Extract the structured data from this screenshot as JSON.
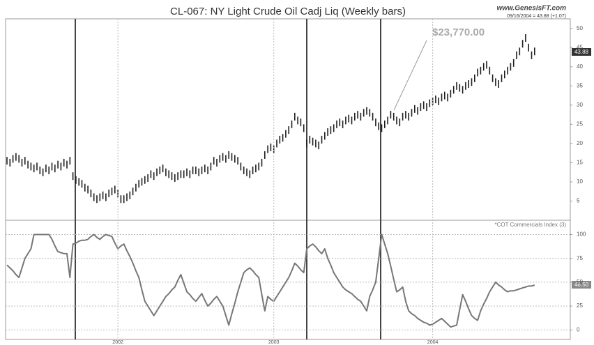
{
  "chart_data": [
    {
      "type": "ohlc",
      "title": "CL-067:  NY Light Crude Oil Cadj Liq  (Weekly bars)",
      "source": "www.GenesisFT.com",
      "subtitle": "09/16/2004 = 43.88 (+1.07)",
      "annotation": "$23,770.00",
      "last_label": "43.88",
      "color": "#1e1e1e",
      "ylim": [
        0,
        52.5
      ],
      "yticks": [
        5,
        10,
        15,
        20,
        25,
        30,
        35,
        40,
        45,
        50
      ],
      "grid": false,
      "high": [
        16.5,
        16,
        17,
        17.5,
        17,
        16,
        16.5,
        15.5,
        15,
        14.5,
        15,
        14,
        13.5,
        14.5,
        14,
        15,
        14.5,
        15.5,
        15,
        16,
        15.5,
        16.5,
        12.5,
        11.5,
        11,
        10.5,
        9.5,
        9,
        8,
        7,
        6.5,
        7,
        7.5,
        7,
        8,
        8.5,
        9,
        8,
        6.5,
        6.5,
        7,
        7.5,
        8.5,
        9.5,
        10.5,
        11,
        11.5,
        12,
        13,
        12.5,
        13.5,
        14,
        14.5,
        13.5,
        13,
        12.5,
        12,
        12.5,
        13,
        13,
        13.5,
        13,
        14,
        14,
        13.5,
        14,
        14.5,
        14,
        15,
        16.5,
        16,
        17,
        17.5,
        17,
        18,
        17.5,
        17,
        16.5,
        15,
        14,
        13.5,
        13,
        14,
        14.5,
        15,
        16,
        18,
        19.5,
        20,
        19.5,
        21,
        22,
        22.5,
        23.5,
        24.5,
        26,
        28,
        27,
        26.5,
        25,
        21,
        22,
        21.5,
        21,
        20.5,
        22,
        23,
        24,
        24.5,
        25,
        26,
        26.5,
        26,
        27,
        27.5,
        27,
        28,
        28.5,
        28,
        29,
        29.5,
        29,
        28,
        26.5,
        25.5,
        25,
        26,
        27,
        28.5,
        28,
        27,
        26.5,
        28,
        28.5,
        28,
        29,
        30,
        29.5,
        30.5,
        31,
        30.5,
        31.5,
        32,
        32.5,
        32,
        33,
        33.5,
        33,
        34,
        35,
        36,
        35.5,
        35,
        36,
        36.5,
        37,
        38,
        39.5,
        40,
        41,
        41.5,
        40,
        38,
        37,
        36.5,
        38,
        39,
        40,
        41,
        42,
        44,
        45,
        47,
        48.5,
        46,
        44,
        45
      ],
      "low": [
        14.5,
        14,
        15,
        15.5,
        15,
        14,
        14.5,
        13.5,
        13,
        12.5,
        13,
        12,
        11.5,
        12.5,
        12,
        13,
        12.5,
        13.5,
        13,
        14,
        13.5,
        14.5,
        10.5,
        9.5,
        9,
        8.5,
        7.5,
        7,
        6,
        5,
        4.5,
        5,
        5.5,
        5,
        6,
        6.5,
        7,
        6,
        4.5,
        4.5,
        5,
        5.5,
        6.5,
        7.5,
        8.5,
        9,
        9.5,
        10,
        11,
        10.5,
        11.5,
        12,
        12.5,
        11.5,
        11,
        10.5,
        10,
        10.5,
        11,
        11,
        11.5,
        11,
        12,
        12,
        11.5,
        12,
        12.5,
        12,
        13,
        14.5,
        14,
        15,
        15.5,
        15,
        16,
        15.5,
        15,
        14.5,
        13,
        12,
        11.5,
        11,
        12,
        12.5,
        13,
        14,
        16,
        17.5,
        18,
        17.5,
        19,
        20,
        20.5,
        21.5,
        22.5,
        24,
        26,
        25,
        24.5,
        23,
        19,
        20,
        19.5,
        19,
        18.5,
        20,
        21,
        22,
        22.5,
        23,
        24,
        24.5,
        24,
        25,
        25.5,
        25,
        26,
        26.5,
        26,
        27,
        27.5,
        27,
        26,
        24.5,
        23.5,
        23,
        24,
        25,
        26.5,
        26,
        25,
        24.5,
        26,
        26.5,
        26,
        27,
        28,
        27.5,
        28.5,
        29,
        28.5,
        29.5,
        30,
        30.5,
        30,
        31,
        31.5,
        31,
        32,
        33,
        34,
        33.5,
        33,
        34,
        34.5,
        35,
        36,
        37.5,
        38,
        39,
        39.5,
        38,
        36,
        35,
        34.5,
        36,
        37,
        38,
        39,
        40,
        42,
        43,
        45,
        46.5,
        44,
        42,
        43
      ]
    },
    {
      "type": "line",
      "label": "*COT Commercials Index (3)",
      "last_label": "46.50",
      "color": "#777777",
      "ylim": [
        -10,
        115
      ],
      "yticks": [
        0,
        25,
        50,
        75,
        100
      ],
      "grid": true,
      "categories": [
        null,
        null,
        null,
        null,
        null,
        null,
        null,
        null,
        null,
        null,
        null,
        null,
        null,
        null,
        null,
        null,
        null,
        null,
        null,
        null,
        null,
        null,
        null,
        null,
        null,
        null,
        null,
        null,
        null,
        null,
        null,
        null,
        null,
        null,
        null,
        null,
        null,
        "2002",
        null,
        null,
        null,
        null,
        null,
        null,
        null,
        null,
        null,
        null,
        null,
        null,
        null,
        null,
        null,
        null,
        null,
        null,
        null,
        null,
        null,
        null,
        null,
        null,
        null,
        null,
        null,
        null,
        null,
        null,
        null,
        null,
        null,
        null,
        null,
        null,
        null,
        null,
        null,
        null,
        null,
        null,
        null,
        null,
        null,
        null,
        null,
        null,
        null,
        null,
        null,
        "2003",
        null,
        null,
        null,
        null,
        null,
        null,
        null,
        null,
        null,
        null,
        null,
        null,
        null,
        null,
        null,
        null,
        null,
        null,
        null,
        null,
        null,
        null,
        null,
        null,
        null,
        null,
        null,
        null,
        null,
        null,
        null,
        null,
        null,
        null,
        null,
        null,
        null,
        null,
        null,
        null,
        null,
        null,
        null,
        null,
        null,
        null,
        null,
        null,
        null,
        null,
        null,
        null,
        "2004",
        null,
        null,
        null,
        null,
        null,
        null,
        null,
        null,
        null,
        null,
        null,
        null,
        null,
        null,
        null,
        null,
        null,
        null,
        null,
        null,
        null,
        null,
        null,
        null,
        null,
        null,
        null,
        null,
        null,
        null,
        null,
        null,
        null,
        null
      ],
      "values": [
        68,
        65,
        62,
        58,
        55,
        65,
        75,
        80,
        85,
        100,
        100,
        100,
        100,
        100,
        100,
        95,
        88,
        82,
        81,
        80,
        80,
        55,
        90,
        91,
        93,
        94,
        94,
        95,
        98,
        100,
        97,
        95,
        98,
        100,
        99,
        98,
        91,
        85,
        88,
        90,
        83,
        77,
        70,
        62,
        55,
        42,
        30,
        25,
        20,
        15,
        20,
        25,
        30,
        35,
        38,
        42,
        45,
        52,
        58,
        49,
        40,
        37,
        33,
        30,
        34,
        38,
        31,
        25,
        28,
        32,
        35,
        30,
        25,
        15,
        5,
        17,
        28,
        40,
        50,
        60,
        63,
        65,
        62,
        58,
        55,
        37,
        20,
        35,
        32,
        30,
        35,
        40,
        45,
        50,
        55,
        62,
        70,
        67,
        63,
        60,
        85,
        88,
        90,
        87,
        83,
        80,
        85,
        75,
        68,
        60,
        55,
        50,
        45,
        42,
        40,
        38,
        35,
        32,
        30,
        25,
        20,
        35,
        42,
        50,
        75,
        100,
        90,
        80,
        67,
        53,
        40,
        42,
        45,
        30,
        20,
        17,
        15,
        12,
        10,
        8,
        7,
        5,
        6,
        8,
        10,
        12,
        9,
        6,
        3,
        4,
        5,
        21,
        37,
        30,
        22,
        15,
        12,
        10,
        20,
        27,
        33,
        40,
        45,
        50,
        47,
        45,
        42,
        40,
        41,
        41,
        42,
        43,
        44,
        45,
        46,
        46,
        47
      ]
    }
  ]
}
